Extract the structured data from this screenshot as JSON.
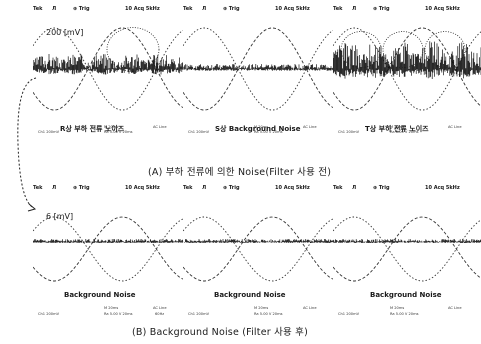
{
  "scale_top": "200 [mV]",
  "scale_bottom": "6 [mV]",
  "section_a_title": "(A) 부하 전류에 의한 Noise(Filter 사용 전)",
  "section_b_title": "(B) Background Noise (Filter 사용 후)",
  "toolbar": {
    "tek": "Tek",
    "trig": "Л",
    "stop": "⊕ Trig",
    "sample": "10 Acq 5kHz"
  },
  "measure": {
    "ch_info": "Ch1 200mV",
    "m_info": "M 20ms",
    "rate_info": "Ra 5.00 V 20ms",
    "ac_info": "AC Line",
    "freq": "60Hz"
  },
  "scopes_top": [
    {
      "caption": "R상 부하 전류 노이즈",
      "noise": "load"
    },
    {
      "caption": "S상 Background Noise",
      "noise": "bg"
    },
    {
      "caption": "T상 부하 전류 노이즈",
      "noise": "heavy"
    }
  ],
  "scopes_bottom": [
    {
      "caption": "Background Noise",
      "noise": "flat"
    },
    {
      "caption": "Background Noise",
      "noise": "flat"
    },
    {
      "caption": "Background Noise",
      "noise": "flat"
    }
  ]
}
